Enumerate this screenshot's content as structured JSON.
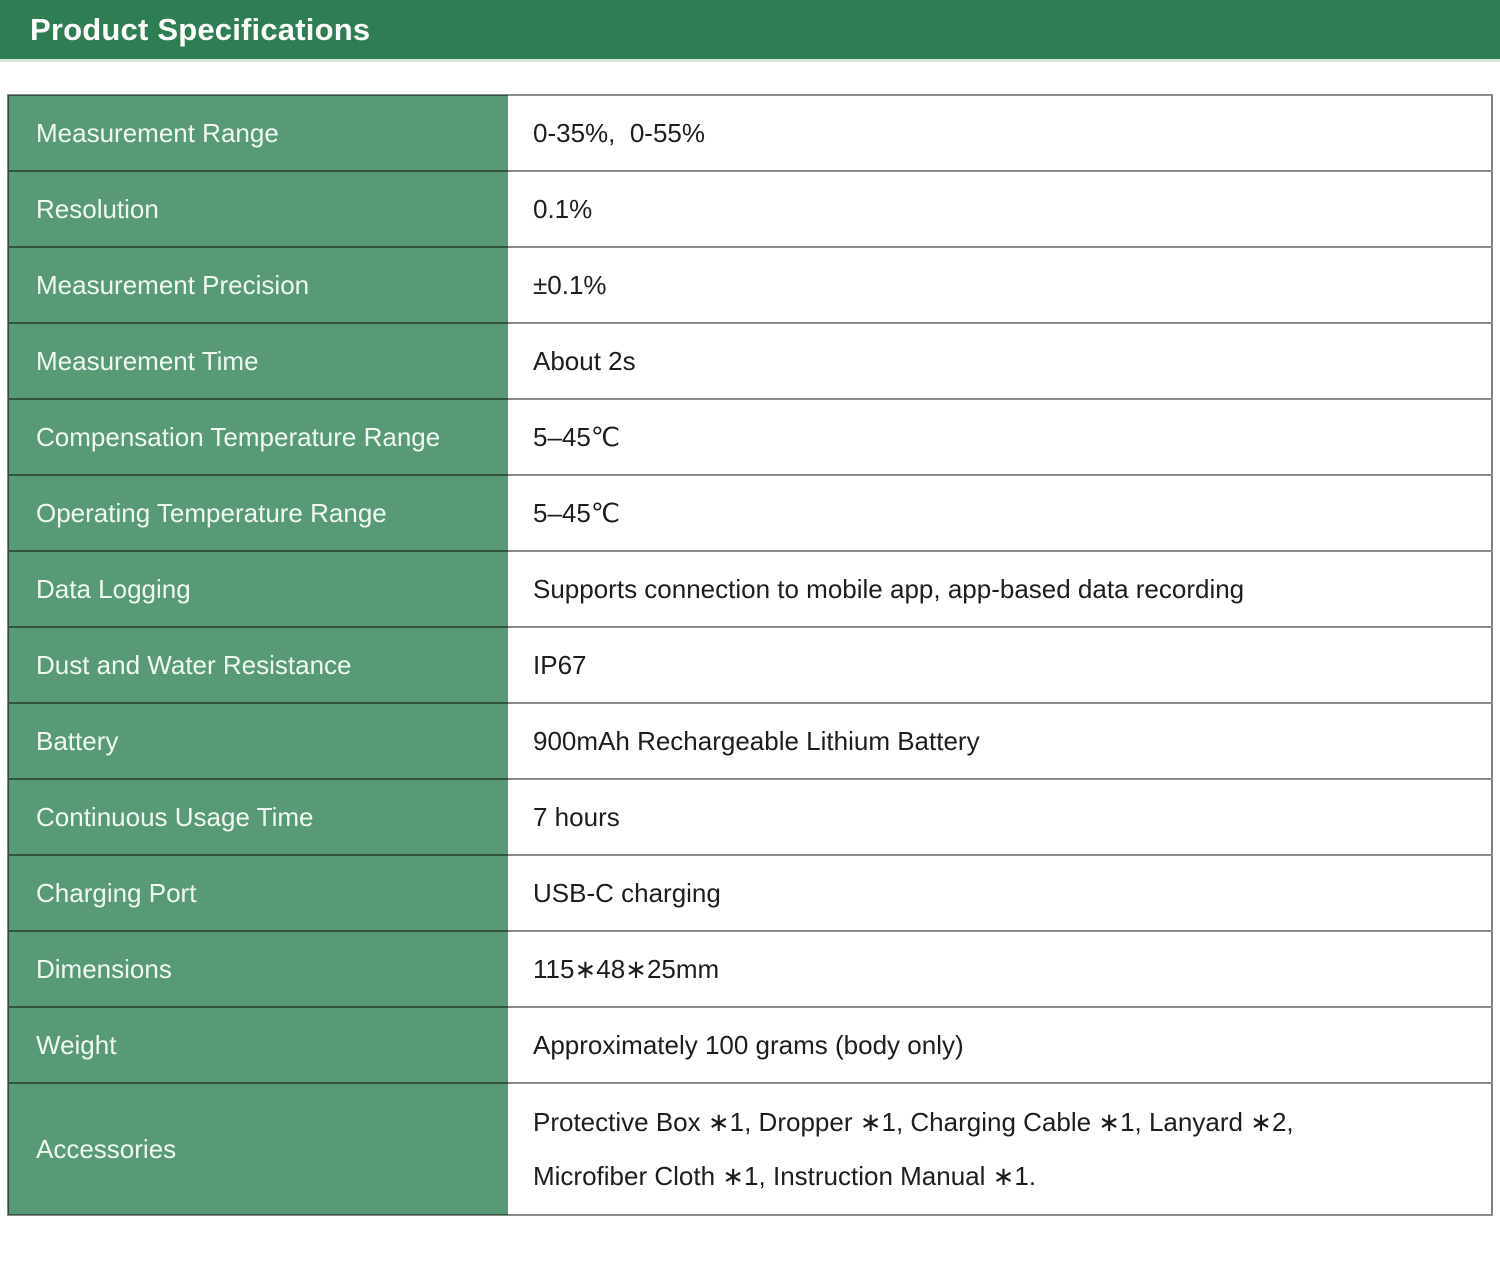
{
  "header": {
    "title": "Product Specifications"
  },
  "colors": {
    "header_green": "#2e7d53",
    "row_green": "#579a75",
    "label_text": "#f1f8f3",
    "value_text": "#1d1d1d"
  },
  "table": {
    "rows": [
      {
        "label": "Measurement Range",
        "value": "0-35%,  0-55%"
      },
      {
        "label": "Resolution",
        "value": "0.1%"
      },
      {
        "label": "Measurement Precision",
        "value": "±0.1%"
      },
      {
        "label": "Measurement Time",
        "value": "About 2s"
      },
      {
        "label": "Compensation Temperature Range",
        "value": "5–45℃"
      },
      {
        "label": "Operating Temperature Range",
        "value": "5–45℃"
      },
      {
        "label": "Data Logging",
        "value": "Supports connection to mobile app, app-based data recording"
      },
      {
        "label": "Dust and Water Resistance",
        "value": "IP67"
      },
      {
        "label": "Battery",
        "value": "900mAh Rechargeable Lithium Battery"
      },
      {
        "label": "Continuous Usage Time",
        "value": "7 hours"
      },
      {
        "label": "Charging Port",
        "value": "USB-C charging"
      },
      {
        "label": "Dimensions",
        "value": "115∗48∗25mm"
      },
      {
        "label": "Weight",
        "value": "Approximately 100 grams (body only)"
      },
      {
        "label": "Accessories",
        "value": "Protective Box ∗1, Dropper ∗1, Charging Cable ∗1, Lanyard ∗2,\nMicrofiber Cloth ∗1, Instruction Manual ∗1.",
        "tall": true
      }
    ]
  }
}
